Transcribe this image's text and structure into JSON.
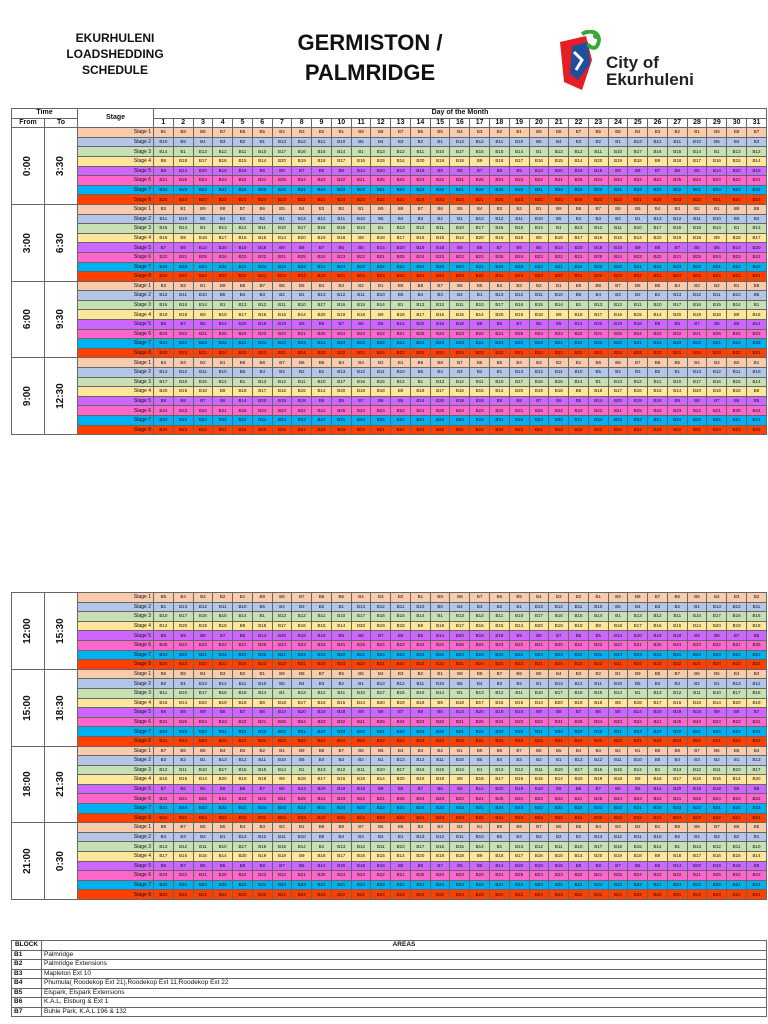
{
  "header": {
    "left_lines": [
      "EKURHULENI",
      "LOADSHEDDING",
      "SCHEDULE"
    ],
    "title_lines": [
      "GERMISTON /",
      "PALMRIDGE"
    ],
    "logo_text_lines": [
      "City of",
      "Ekurhuleni"
    ]
  },
  "table_headers": {
    "time": "Time",
    "stage": "Stage",
    "day": "Day of the Month",
    "from": "From",
    "to": "To",
    "days": [
      "1",
      "2",
      "3",
      "4",
      "5",
      "6",
      "7",
      "8",
      "9",
      "10",
      "11",
      "12",
      "13",
      "14",
      "15",
      "16",
      "17",
      "18",
      "19",
      "20",
      "21",
      "22",
      "23",
      "24",
      "25",
      "26",
      "27",
      "28",
      "29",
      "30",
      "31"
    ]
  },
  "stage_labels": [
    "Stage 1",
    "Stage 2",
    "Stage 3",
    "Stage 4",
    "Stage 5",
    "Stage 6",
    "Stage 7",
    "Stage 8"
  ],
  "periods_top": [
    {
      "from": "0:00",
      "to": "3:30",
      "rows": [
        "B1 B9 B8 B7 B6 B5 B4 B3 B2 B1 B9 B8 B7 B6 B5 B4 B3 B2 B1 B9 B8 B7 B6 B5 B4 B3 B2 B1 B9 B8 B7",
        "B10 B5 B4 B3 B2 B1 B13 B12 B11 B10 B5 B4 B3 B2 B1 B13 B12 B11 B10 B5 B4 B3 B2 B1 B13 B12 B11 B10 B5 B4 B3",
        "B14 B1 B13 B12 B11 B10 B17 B16 B15 B14 B1 B13 B12 B11 B10 B17 B16 B15 B14 B1 B13 B12 B11 B10 B17 B16 B15 B14 B1 B13 B12",
        "B9 B18 B17 B16 B15 B14 B20 B19 B18 B17 B16 B15 B14 B20 B19 B18 B9 B18 B17 B16 B15 B14 B20 B19 B18 B9 B18 B17 B16 B15 B14",
        "B6 B14 B20 B19 B18 B9 B8 B7 B6 B5 B14 B20 B19 B18 B9 B8 B7 B6 B5 B14 B20 B19 B18 B9 B8 B7 B6 B5 B14 B20 B19",
        "B21 B25 B24 B23 B22 B21 B25 B24 B23 B22 B21 B25 B24 B23 B22 B21 B25 B24 B23 B22 B21 B25 B24 B23 B22 B21 B25 B24 B23 B22 B21",
        "B22 B23 B22 B21 B24 B23 B22 B21 B24 B23 B22 B21 B24 B23 B22 B21 B24 B23 B22 B21 B24 B23 B22 B21 B24 B23 B22 B21 B24 B23 B22",
        "B24 B24 B23 B22 B21 B24 B23 B22 B21 B24 B23 B22 B21 B24 B23 B22 B21 B24 B23 B22 B21 B24 B23 B22 B21 B24 B23 B22 B21 B24 B23"
      ]
    },
    {
      "from": "3:00",
      "to": "6:30",
      "rows": [
        "B2 B1 B9 B8 B7 B6 B5 B4 B3 B2 B1 B9 B8 B7 B6 B5 B4 B3 B2 B1 B9 B8 B7 B6 B5 B4 B3 B2 B1 B9 B8",
        "B11 B10 B5 B4 B3 B2 B1 B13 B12 B11 B10 B5 B4 B3 B2 B1 B13 B12 B11 B10 B5 B4 B3 B2 B1 B13 B12 B11 B10 B5 B4",
        "B15 B14 B1 B13 B12 B11 B10 B17 B16 B15 B14 B1 B13 B12 B11 B10 B17 B16 B15 B14 B1 B13 B12 B11 B10 B17 B16 B15 B14 B1 B13",
        "B18 B9 B18 B17 B16 B15 B14 B20 B19 B18 B9 B18 B17 B16 B15 B14 B20 B19 B18 B9 B18 B17 B16 B15 B14 B20 B19 B18 B9 B18 B17",
        "B7 B6 B14 B20 B19 B18 B9 B8 B7 B6 B5 B14 B20 B19 B18 B9 B8 B7 B6 B5 B14 B20 B19 B18 B9 B8 B7 B6 B5 B14 B20",
        "B22 B21 B25 B24 B23 B22 B21 B25 B24 B23 B22 B21 B25 B24 B23 B22 B21 B25 B24 B23 B22 B21 B25 B24 B23 B22 B21 B25 B24 B23 B22",
        "B24 B23 B23 B22 B21 B24 B23 B22 B21 B24 B23 B22 B21 B24 B23 B22 B21 B24 B23 B22 B21 B24 B23 B22 B21 B24 B23 B22 B21 B24 B23",
        "B22 B21 B24 B23 B22 B21 B24 B23 B22 B21 B24 B23 B22 B21 B24 B23 B22 B21 B24 B23 B22 B21 B24 B23 B22 B21 B24 B23 B22 B21 B24"
      ]
    },
    {
      "from": "6:00",
      "to": "9:30",
      "rows": [
        "B3 B2 B1 B9 B8 B7 B6 B5 B4 B3 B2 B1 B9 B8 B7 B6 B5 B4 B3 B2 B1 B9 B8 B7 B6 B5 B4 B3 B2 B1 B9",
        "B12 B11 B10 B5 B4 B3 B2 B1 B13 B12 B11 B10 B5 B4 B3 B2 B1 B13 B12 B11 B10 B5 B4 B3 B2 B1 B13 B12 B11 B10 B5",
        "B16 B15 B14 B1 B13 B12 B11 B10 B17 B16 B15 B14 B1 B13 B12 B11 B10 B17 B16 B15 B14 B1 B13 B12 B11 B10 B17 B16 B15 B14 B1",
        "B19 B18 B9 B18 B17 B16 B15 B14 B20 B19 B18 B9 B18 B17 B16 B15 B14 B20 B19 B18 B9 B18 B17 B16 B15 B14 B20 B19 B18 B9 B18",
        "B8 B7 B6 B14 B20 B19 B18 B9 B8 B7 B6 B5 B14 B20 B19 B18 B9 B8 B7 B6 B5 B14 B20 B19 B18 B9 B8 B7 B6 B5 B14",
        "B23 B22 B21 B25 B24 B23 B22 B21 B25 B24 B23 B22 B21 B25 B24 B23 B22 B21 B25 B24 B23 B22 B21 B25 B24 B23 B22 B21 B25 B24 B23",
        "B21 B24 B23 B22 B21 B24 B23 B22 B21 B24 B23 B22 B21 B24 B23 B22 B21 B24 B23 B22 B21 B24 B23 B22 B21 B24 B23 B22 B21 B24 B23",
        "B23 B22 B21 B24 B23 B22 B21 B24 B23 B22 B21 B24 B23 B22 B21 B24 B23 B22 B21 B24 B23 B22 B21 B24 B23 B22 B21 B24 B23 B22 B21"
      ]
    },
    {
      "from": "9:00",
      "to": "12:30",
      "rows": [
        "B4 B3 B2 B1 B9 B8 B7 B6 B5 B4 B3 B2 B1 B9 B8 B7 B6 B5 B4 B3 B2 B1 B9 B8 B7 B6 B5 B4 B3 B2 B1",
        "B13 B12 B11 B10 B5 B4 B3 B2 B1 B13 B12 B11 B10 B5 B4 B3 B2 B1 B13 B12 B11 B10 B5 B4 B3 B2 B1 B13 B12 B11 B10",
        "B17 B16 B15 B14 B1 B13 B12 B11 B10 B17 B16 B15 B14 B1 B13 B12 B11 B10 B17 B16 B15 B14 B1 B13 B12 B11 B10 B17 B16 B15 B14",
        "B20 B19 B18 B9 B18 B17 B16 B15 B14 B20 B19 B18 B9 B18 B17 B16 B15 B14 B20 B19 B18 B9 B18 B17 B16 B15 B14 B20 B19 B18 B9",
        "B9 B8 B7 B6 B14 B20 B19 B18 B9 B8 B7 B6 B5 B14 B20 B19 B18 B9 B8 B7 B6 B5 B14 B20 B19 B18 B9 B8 B7 B6 B5",
        "B24 B23 B22 B21 B25 B24 B23 B22 B21 B25 B24 B23 B22 B21 B25 B24 B23 B22 B21 B25 B24 B23 B22 B21 B25 B24 B23 B22 B21 B25 B24",
        "B22 B21 B24 B23 B22 B21 B24 B23 B22 B21 B24 B23 B22 B21 B24 B23 B22 B21 B24 B23 B22 B21 B24 B23 B22 B21 B24 B23 B22 B21 B24",
        "B24 B23 B22 B21 B24 B23 B22 B21 B24 B23 B22 B21 B24 B23 B22 B21 B24 B23 B22 B21 B24 B23 B22 B21 B24 B23 B22 B21 B24 B23 B22"
      ]
    }
  ],
  "periods_bottom": [
    {
      "from": "12:00",
      "to": "15:30",
      "rows": [
        "B5 B4 B3 B2 B1 B9 B8 B7 B6 B5 B4 B3 B2 B1 B9 B8 B7 B6 B5 B4 B3 B2 B1 B9 B8 B7 B6 B5 B4 B3 B2",
        "B1 B13 B12 B11 B10 B5 B4 B3 B2 B1 B13 B12 B11 B10 B5 B4 B3 B2 B1 B13 B12 B11 B10 B5 B4 B3 B2 B1 B13 B12 B11",
        "B10 B17 B16 B15 B14 B1 B13 B12 B11 B10 B17 B16 B15 B14 B1 B13 B12 B11 B10 B17 B16 B15 B14 B1 B13 B12 B11 B10 B17 B16 B15",
        "B14 B20 B19 B18 B9 B18 B17 B16 B15 B14 B20 B19 B18 B9 B18 B17 B16 B15 B14 B20 B19 B18 B9 B18 B17 B16 B15 B14 B20 B19 B18",
        "B5 B9 B8 B7 B6 B14 B20 B19 B18 B9 B8 B7 B6 B5 B14 B20 B19 B18 B9 B8 B7 B6 B5 B14 B20 B19 B18 B9 B8 B7 B6",
        "B25 B24 B23 B22 B21 B25 B24 B23 B22 B21 B25 B24 B23 B22 B21 B25 B24 B23 B22 B21 B25 B24 B23 B22 B21 B25 B24 B23 B22 B21 B25",
        "B23 B22 B21 B24 B23 B22 B21 B24 B23 B22 B21 B24 B23 B22 B21 B24 B23 B22 B21 B24 B23 B22 B21 B24 B23 B22 B21 B24 B23 B22 B21",
        "B24 B23 B22 B21 B24 B23 B22 B21 B24 B23 B22 B21 B24 B23 B22 B21 B24 B23 B22 B21 B24 B23 B22 B21 B24 B23 B22 B21 B24 B23 B22"
      ]
    },
    {
      "from": "15:00",
      "to": "18:30",
      "rows": [
        "B6 B5 B4 B3 B2 B1 B9 B8 B7 B6 B5 B4 B3 B2 B1 B9 B8 B7 B6 B5 B4 B3 B2 B1 B9 B8 B7 B6 B5 B4 B3",
        "B2 B1 B13 B12 B11 B10 B5 B4 B3 B2 B1 B13 B12 B11 B10 B5 B4 B3 B2 B1 B13 B12 B11 B10 B5 B4 B3 B2 B1 B13 B12",
        "B11 B10 B17 B16 B15 B14 B1 B13 B12 B11 B10 B17 B16 B15 B14 B1 B13 B12 B11 B10 B17 B16 B15 B14 B1 B13 B12 B11 B10 B17 B16",
        "B15 B14 B20 B19 B18 B9 B18 B17 B16 B15 B14 B20 B19 B18 B9 B18 B17 B16 B15 B14 B20 B19 B18 B9 B18 B17 B16 B15 B14 B20 B19",
        "B6 B5 B9 B8 B7 B6 B14 B20 B19 B18 B9 B8 B7 B6 B5 B14 B20 B19 B18 B9 B8 B7 B6 B5 B14 B20 B19 B18 B9 B8 B7",
        "B21 B25 B24 B23 B22 B21 B25 B24 B23 B22 B21 B25 B24 B23 B22 B21 B25 B24 B23 B22 B21 B25 B24 B23 B22 B21 B25 B24 B23 B22 B21",
        "B24 B23 B22 B21 B24 B23 B22 B21 B24 B23 B22 B21 B24 B23 B22 B21 B24 B23 B22 B21 B24 B23 B22 B21 B24 B23 B22 B21 B24 B23 B22",
        "B21 B24 B23 B22 B21 B24 B23 B22 B21 B24 B23 B22 B21 B24 B23 B22 B21 B24 B23 B22 B21 B24 B23 B22 B21 B24 B23 B22 B21 B24 B23"
      ]
    },
    {
      "from": "18:00",
      "to": "21:30",
      "rows": [
        "B7 B6 B5 B4 B3 B2 B1 B9 B8 B7 B6 B5 B4 B3 B2 B1 B9 B8 B7 B6 B5 B4 B3 B2 B1 B9 B8 B7 B6 B5 B4",
        "B3 B2 B1 B13 B12 B11 B10 B5 B4 B3 B2 B1 B13 B12 B11 B10 B5 B4 B3 B2 B1 B13 B12 B11 B10 B5 B4 B3 B2 B1 B13",
        "B12 B11 B10 B17 B16 B15 B14 B1 B13 B12 B11 B10 B17 B16 B15 B14 B1 B13 B12 B11 B10 B17 B16 B15 B14 B1 B13 B12 B11 B10 B17",
        "B16 B15 B14 B20 B19 B18 B9 B18 B17 B16 B15 B14 B20 B19 B18 B9 B18 B17 B16 B15 B14 B20 B19 B18 B9 B18 B17 B16 B15 B14 B20",
        "B7 B6 B5 B9 B8 B7 B6 B14 B20 B19 B18 B9 B8 B7 B6 B5 B14 B20 B19 B18 B9 B8 B7 B6 B5 B14 B20 B19 B18 B9 B8",
        "B22 B21 B25 B24 B23 B22 B21 B25 B24 B23 B22 B21 B25 B24 B23 B22 B21 B25 B24 B23 B22 B21 B25 B24 B23 B22 B21 B25 B24 B23 B22",
        "B21 B24 B23 B22 B21 B24 B23 B22 B21 B24 B23 B22 B21 B24 B23 B22 B21 B24 B23 B22 B21 B24 B23 B22 B21 B24 B23 B22 B21 B24 B23",
        "B22 B21 B24 B23 B22 B21 B24 B23 B22 B21 B24 B23 B22 B21 B24 B23 B22 B21 B24 B23 B22 B21 B24 B23 B22 B21 B24 B23 B22 B21 B24"
      ]
    },
    {
      "from": "21:00",
      "to": "0:30",
      "rows": [
        "B8 B7 B6 B5 B4 B3 B2 B1 B9 B8 B7 B6 B5 B4 B3 B2 B1 B9 B8 B7 B6 B5 B4 B3 B2 B1 B9 B8 B7 B6 B5",
        "B4 B3 B2 B1 B13 B12 B11 B10 B5 B4 B3 B2 B1 B13 B12 B11 B10 B5 B4 B3 B2 B1 B13 B12 B11 B10 B5 B4 B3 B2 B1",
        "B13 B12 B11 B10 B17 B16 B15 B14 B1 B13 B12 B11 B10 B17 B16 B15 B14 B1 B13 B12 B11 B10 B17 B16 B15 B14 B1 B13 B12 B11 B10",
        "B17 B16 B15 B14 B20 B19 B18 B9 B18 B17 B16 B15 B14 B20 B19 B18 B9 B18 B17 B16 B15 B14 B20 B19 B18 B9 B18 B17 B16 B15 B14",
        "B8 B7 B6 B5 B9 B8 B7 B6 B14 B20 B19 B18 B9 B8 B7 B6 B5 B14 B20 B19 B18 B9 B8 B7 B6 B5 B14 B20 B19 B18 B9",
        "B23 B22 B21 B25 B24 B23 B22 B21 B25 B24 B23 B22 B21 B25 B24 B23 B22 B21 B25 B24 B23 B22 B21 B25 B24 B23 B22 B21 B25 B24 B23",
        "B22 B21 B24 B23 B22 B21 B24 B23 B22 B21 B24 B23 B22 B21 B24 B23 B22 B21 B24 B23 B22 B21 B24 B23 B22 B21 B24 B23 B22 B21 B24",
        "B23 B22 B21 B24 B23 B22 B21 B24 B23 B22 B21 B24 B23 B22 B21 B24 B23 B22 B21 B24 B23 B22 B21 B24 B23 B22 B21 B24 B23 B22 B21"
      ]
    }
  ],
  "areas": {
    "headers": {
      "block": "BLOCK",
      "areas": "AREAS"
    },
    "rows": [
      {
        "block": "B1",
        "area": "Palmridge"
      },
      {
        "block": "B2",
        "area": "Palmridge Extensions"
      },
      {
        "block": "B3",
        "area": "Mapleton Ext 10"
      },
      {
        "block": "B4",
        "area": "Phumula( Roodekop Ext 21),Roodekop Ext 11,Roodekop Ext 22"
      },
      {
        "block": "B5",
        "area": "Elspark, Elspark Extensions"
      },
      {
        "block": "B6",
        "area": "K.A.L, Elsburg & Ext 1"
      },
      {
        "block": "B7",
        "area": "Buhle Park, K.A.L 196 & 132"
      }
    ]
  },
  "colors": {
    "stage1": "#f8cbad",
    "stage2": "#b4c6e7",
    "stage3": "#c6e0b4",
    "stage4": "#ffe699",
    "stage5": "#cc66ff",
    "stage6": "#ff66cc",
    "stage7": "#00b0f0",
    "stage8": "#ff4000"
  }
}
